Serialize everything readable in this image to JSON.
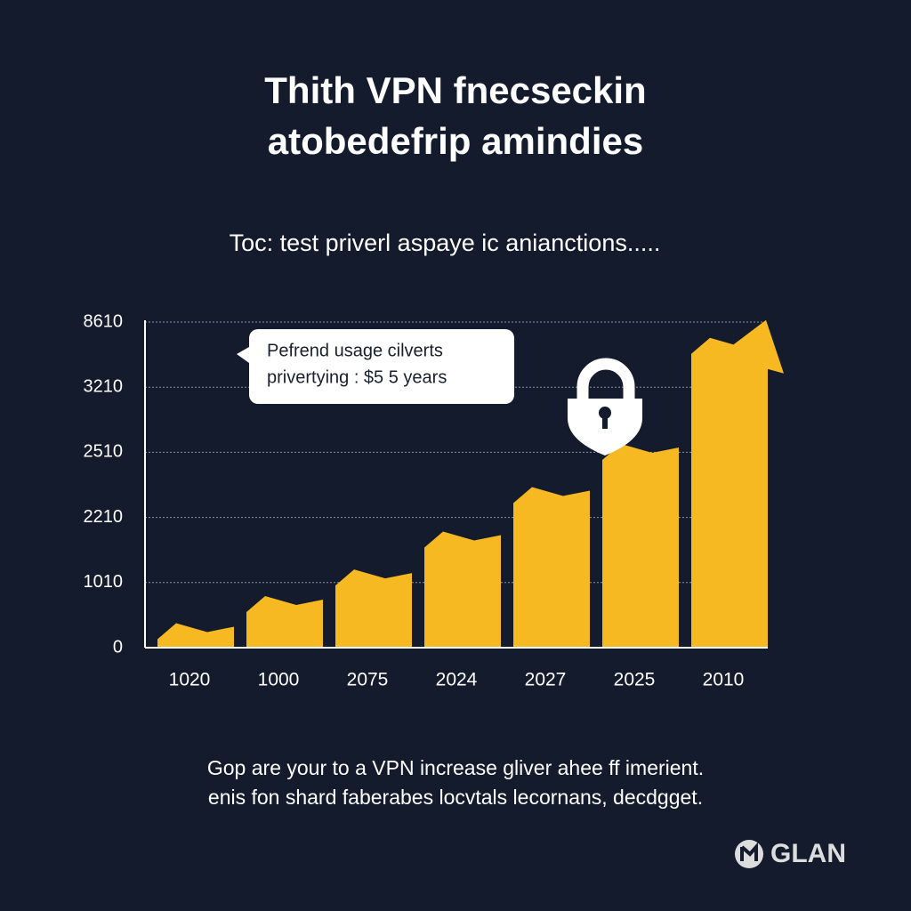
{
  "header": {
    "title_lines": [
      "Thith  VPN fnecseckin",
      "atobedefrip amindies"
    ],
    "subtitle": "Toc: test priverl aspaye ic anianctiоns....."
  },
  "chart_data": {
    "type": "bar",
    "categories": [
      "1020",
      "1000",
      "2075",
      "2024",
      "2027",
      "2025",
      "2010"
    ],
    "values": [
      380,
      800,
      1250,
      1950,
      2350,
      2600,
      7300
    ],
    "color": "#f6b921",
    "ylim": [
      0,
      8610
    ],
    "yticks": [
      0,
      1010,
      2210,
      2510,
      3210,
      8610
    ],
    "grid": true,
    "annotation_lines": [
      "Pefrend usage cilverts",
      "privertying : $5 5 years"
    ]
  },
  "footer": {
    "lines": [
      "Gop are your to a VPN increase gliver ahee ff imerient.",
      "enis fon shard faberabes locvtals lecornans, decdgget."
    ],
    "logo": "GLAN"
  }
}
